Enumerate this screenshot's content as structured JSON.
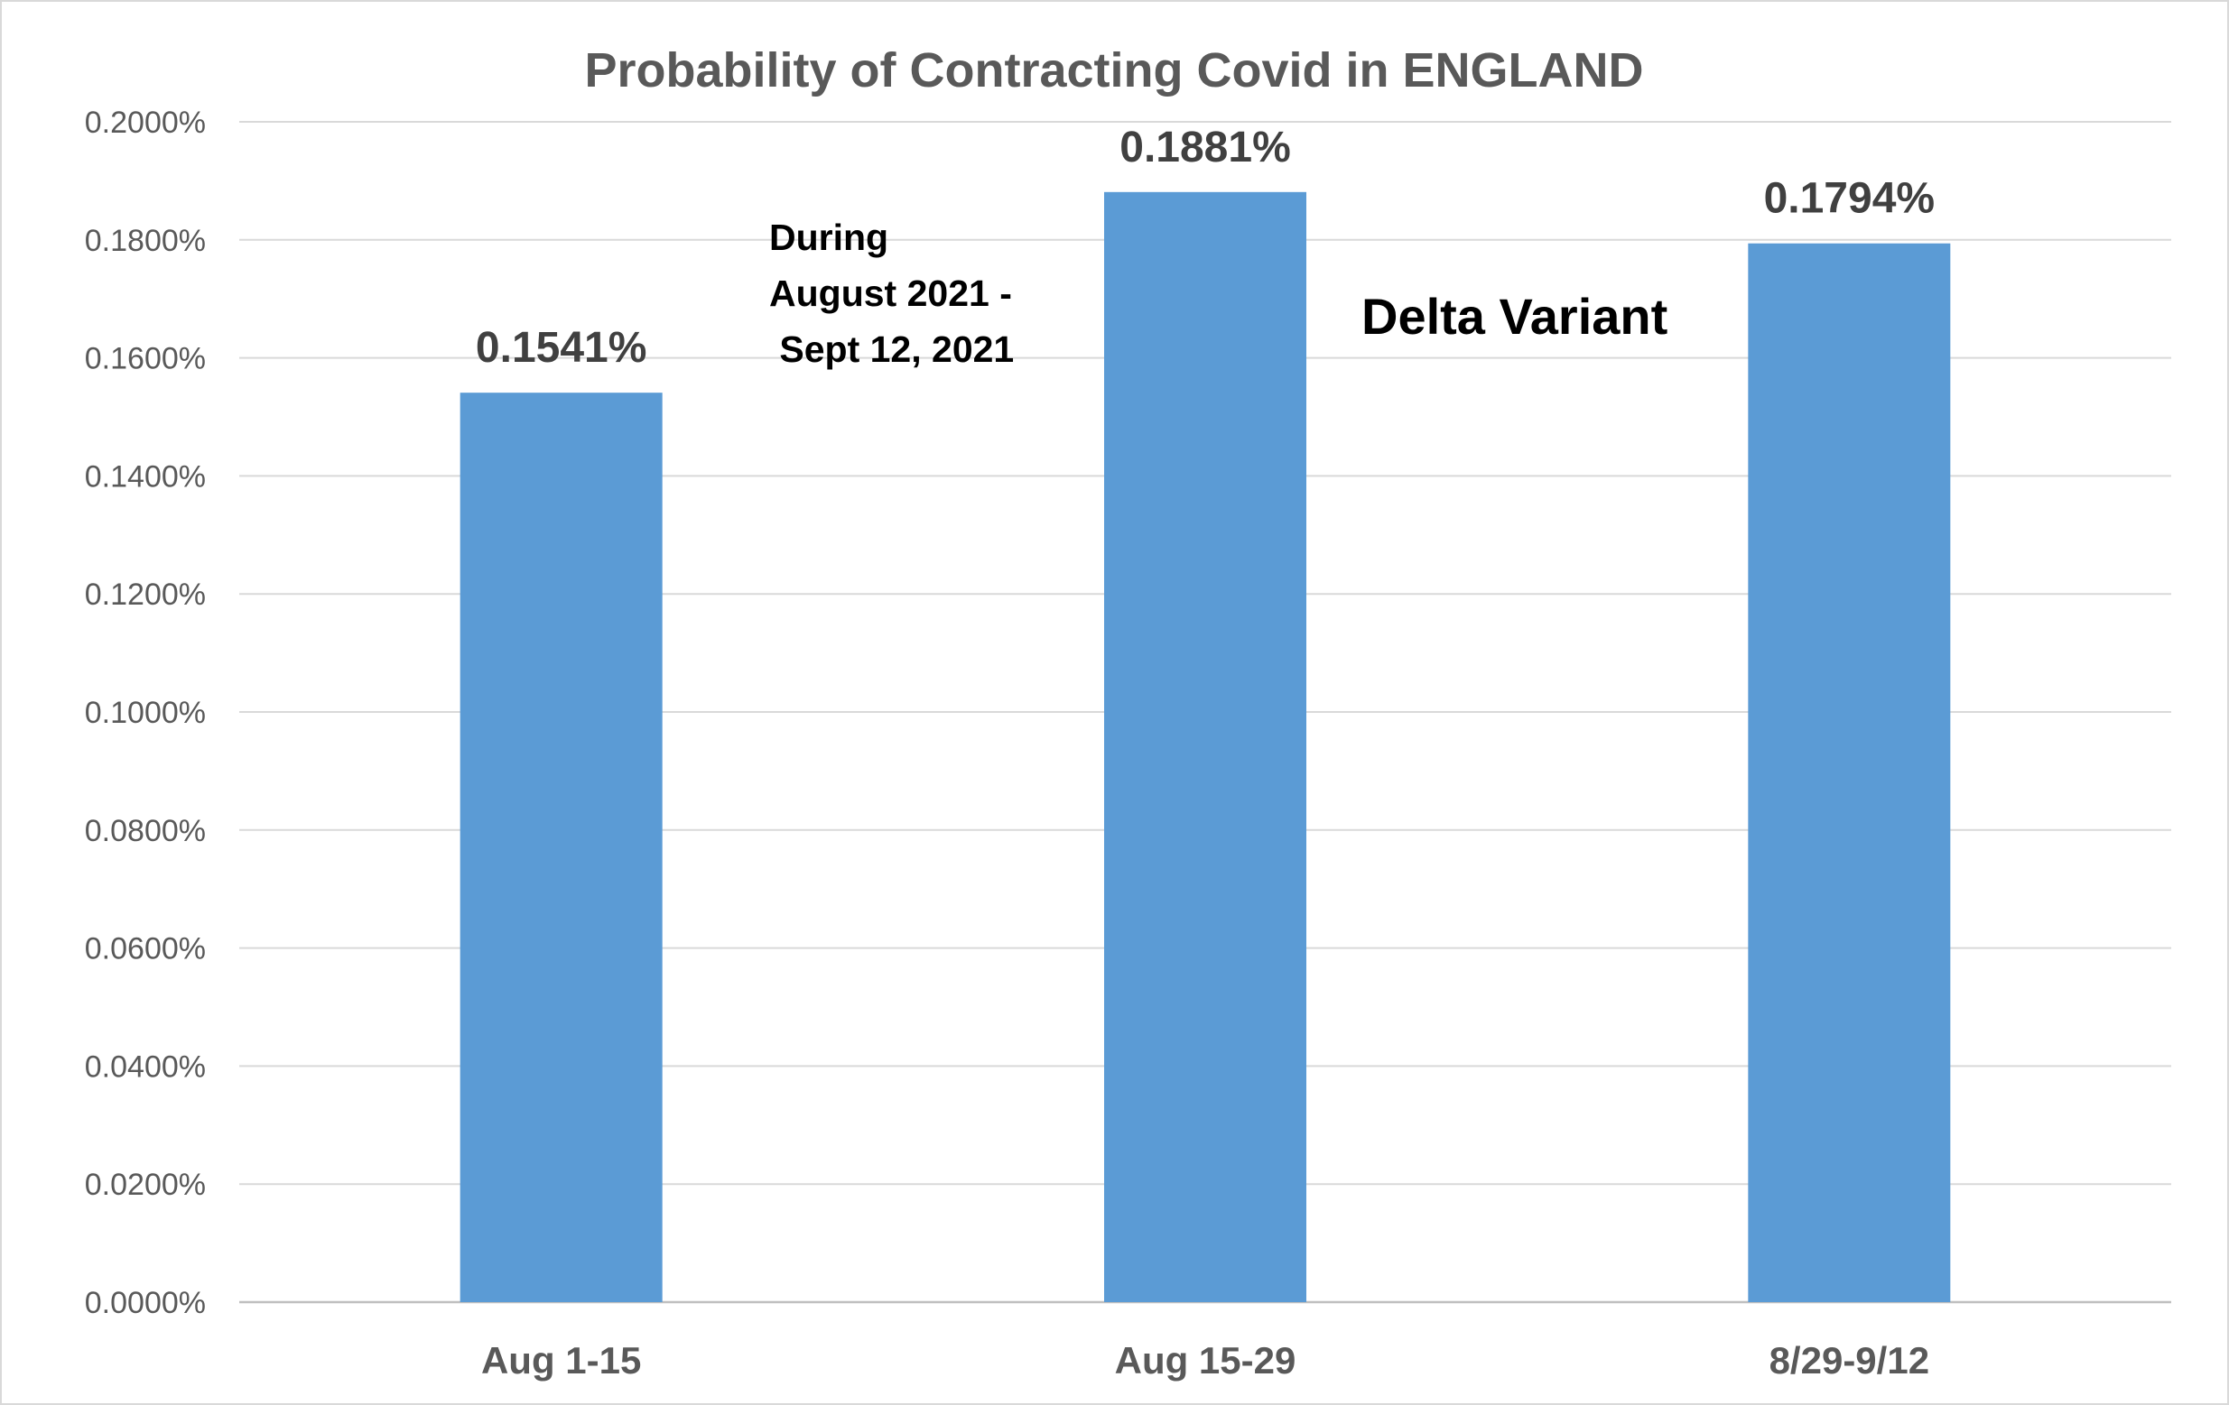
{
  "chart_data": {
    "type": "bar",
    "title": "Probability of Contracting Covid in ENGLAND",
    "categories": [
      "Aug 1-15",
      "Aug 15-29",
      "8/29-9/12"
    ],
    "values": [
      0.1541,
      0.1881,
      0.1794
    ],
    "value_unit": "%",
    "data_labels": [
      "0.1541%",
      "0.1881%",
      "0.1794%"
    ],
    "ylim": [
      0,
      0.2
    ],
    "yticks": [
      0,
      0.02,
      0.04,
      0.06,
      0.08,
      0.1,
      0.12,
      0.14,
      0.16,
      0.18,
      0.2
    ],
    "ytick_labels": [
      "0.0000%",
      "0.0200%",
      "0.0400%",
      "0.0600%",
      "0.0800%",
      "0.1000%",
      "0.1200%",
      "0.1400%",
      "0.1600%",
      "0.1800%",
      "0.2000%"
    ],
    "xlabel": "",
    "ylabel": "",
    "grid": true,
    "legend": "none",
    "bar_color": "#5b9bd5",
    "annotations": [
      {
        "lines": [
          "During",
          "August 2021 -",
          " Sept 12, 2021"
        ]
      },
      {
        "lines": [
          "Delta Variant"
        ]
      }
    ]
  }
}
